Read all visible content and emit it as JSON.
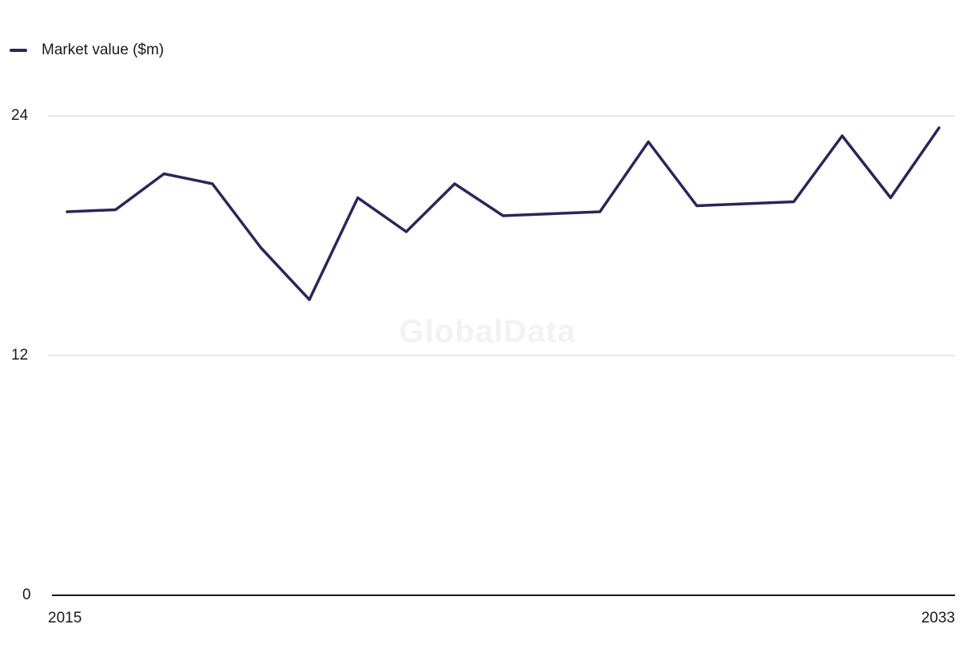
{
  "chart_data": {
    "type": "line",
    "title": "",
    "legend": {
      "label": "Market value ($m)",
      "position": "top-left"
    },
    "x": [
      2015,
      2016,
      2017,
      2018,
      2019,
      2020,
      2021,
      2022,
      2023,
      2024,
      2025,
      2026,
      2027,
      2028,
      2029,
      2030,
      2031,
      2032,
      2033
    ],
    "series": [
      {
        "name": "Market value ($m)",
        "values": [
          19.2,
          19.3,
          21.1,
          20.6,
          17.4,
          14.8,
          19.9,
          18.2,
          20.6,
          19.0,
          19.1,
          19.2,
          22.7,
          19.5,
          19.6,
          19.7,
          23.0,
          19.9,
          23.4
        ]
      }
    ],
    "ylim": [
      0,
      24
    ],
    "yticks": {
      "t24": "24",
      "t12": "12",
      "t0": "0"
    },
    "xticks": {
      "start": "2015",
      "end": "2033"
    },
    "grid": "horizontal",
    "colors": {
      "line": "#2e2459",
      "gridline": "#e1e1e1",
      "axis": "#1a1a1a",
      "watermark_text": "#f2f2f2"
    },
    "watermark": "GlobalData"
  }
}
